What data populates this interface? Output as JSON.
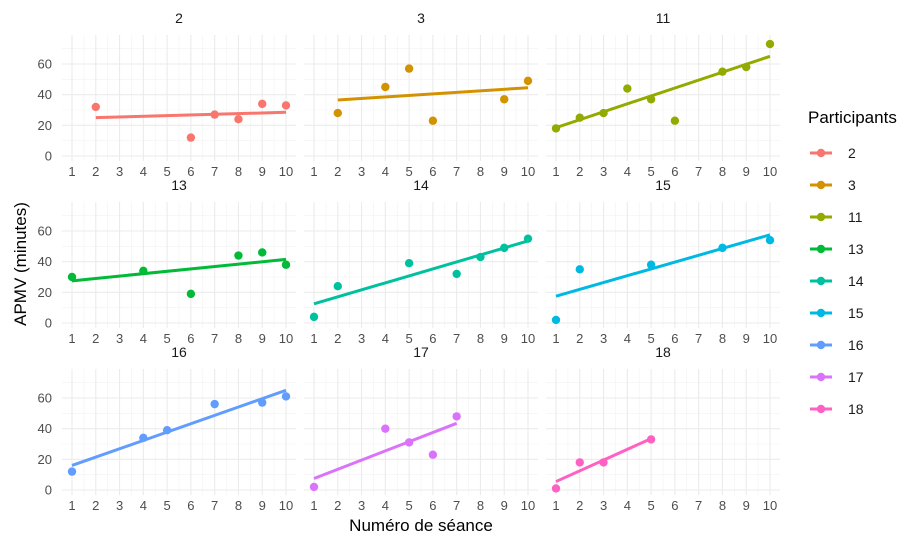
{
  "chart_data": {
    "type": "scatter",
    "xlabel": "Numéro de séance",
    "ylabel": "APMV (minutes)",
    "xlim": [
      1,
      10
    ],
    "ylim": [
      0,
      75
    ],
    "x_ticks": [
      1,
      2,
      3,
      4,
      5,
      6,
      7,
      8,
      9,
      10
    ],
    "y_ticks": [
      0,
      20,
      40,
      60
    ],
    "grid": true,
    "legend": {
      "title": "Participants",
      "position": "right"
    },
    "panels": [
      {
        "name": "2",
        "color": "#F8766D",
        "points": [
          [
            2,
            32
          ],
          [
            6,
            12
          ],
          [
            7,
            27
          ],
          [
            8,
            24
          ],
          [
            9,
            34
          ],
          [
            10,
            33
          ]
        ],
        "fit": [
          [
            2,
            25
          ],
          [
            10,
            28.5
          ]
        ]
      },
      {
        "name": "3",
        "color": "#D39200",
        "points": [
          [
            2,
            28
          ],
          [
            4,
            45
          ],
          [
            5,
            57
          ],
          [
            6,
            23
          ],
          [
            9,
            37
          ],
          [
            10,
            49
          ]
        ],
        "fit": [
          [
            2,
            36.5
          ],
          [
            10,
            44.5
          ]
        ]
      },
      {
        "name": "11",
        "color": "#93AA00",
        "points": [
          [
            1,
            18
          ],
          [
            2,
            25
          ],
          [
            3,
            28
          ],
          [
            4,
            44
          ],
          [
            5,
            37
          ],
          [
            6,
            23
          ],
          [
            8,
            55
          ],
          [
            9,
            58
          ],
          [
            10,
            73
          ]
        ],
        "fit": [
          [
            1,
            18.5
          ],
          [
            10,
            65
          ]
        ]
      },
      {
        "name": "13",
        "color": "#00BA38",
        "points": [
          [
            1,
            30
          ],
          [
            4,
            34
          ],
          [
            6,
            19
          ],
          [
            8,
            44
          ],
          [
            9,
            46
          ],
          [
            10,
            38
          ]
        ],
        "fit": [
          [
            1,
            27.5
          ],
          [
            10,
            41.5
          ]
        ]
      },
      {
        "name": "14",
        "color": "#00C19F",
        "points": [
          [
            1,
            4
          ],
          [
            2,
            24
          ],
          [
            5,
            39
          ],
          [
            7,
            32
          ],
          [
            8,
            43
          ],
          [
            9,
            49
          ],
          [
            10,
            55
          ]
        ],
        "fit": [
          [
            1,
            12.5
          ],
          [
            10,
            53.5
          ]
        ]
      },
      {
        "name": "15",
        "color": "#00B9E3",
        "points": [
          [
            1,
            2
          ],
          [
            2,
            35
          ],
          [
            5,
            38
          ],
          [
            8,
            49
          ],
          [
            10,
            54
          ]
        ],
        "fit": [
          [
            1,
            17.5
          ],
          [
            10,
            57.5
          ]
        ]
      },
      {
        "name": "16",
        "color": "#619CFF",
        "points": [
          [
            1,
            12
          ],
          [
            4,
            34
          ],
          [
            5,
            39
          ],
          [
            7,
            56
          ],
          [
            9,
            57
          ],
          [
            10,
            61
          ]
        ],
        "fit": [
          [
            1,
            16
          ],
          [
            10,
            65
          ]
        ]
      },
      {
        "name": "17",
        "color": "#DB72FB",
        "points": [
          [
            1,
            2
          ],
          [
            4,
            40
          ],
          [
            5,
            31
          ],
          [
            6,
            23
          ],
          [
            7,
            48
          ]
        ],
        "fit": [
          [
            1,
            7.5
          ],
          [
            7,
            43.5
          ]
        ]
      },
      {
        "name": "18",
        "color": "#FF61C3",
        "points": [
          [
            1,
            1
          ],
          [
            2,
            18
          ],
          [
            3,
            18
          ],
          [
            5,
            33
          ]
        ],
        "fit": [
          [
            1,
            5.5
          ],
          [
            5,
            33.5
          ]
        ]
      }
    ]
  }
}
